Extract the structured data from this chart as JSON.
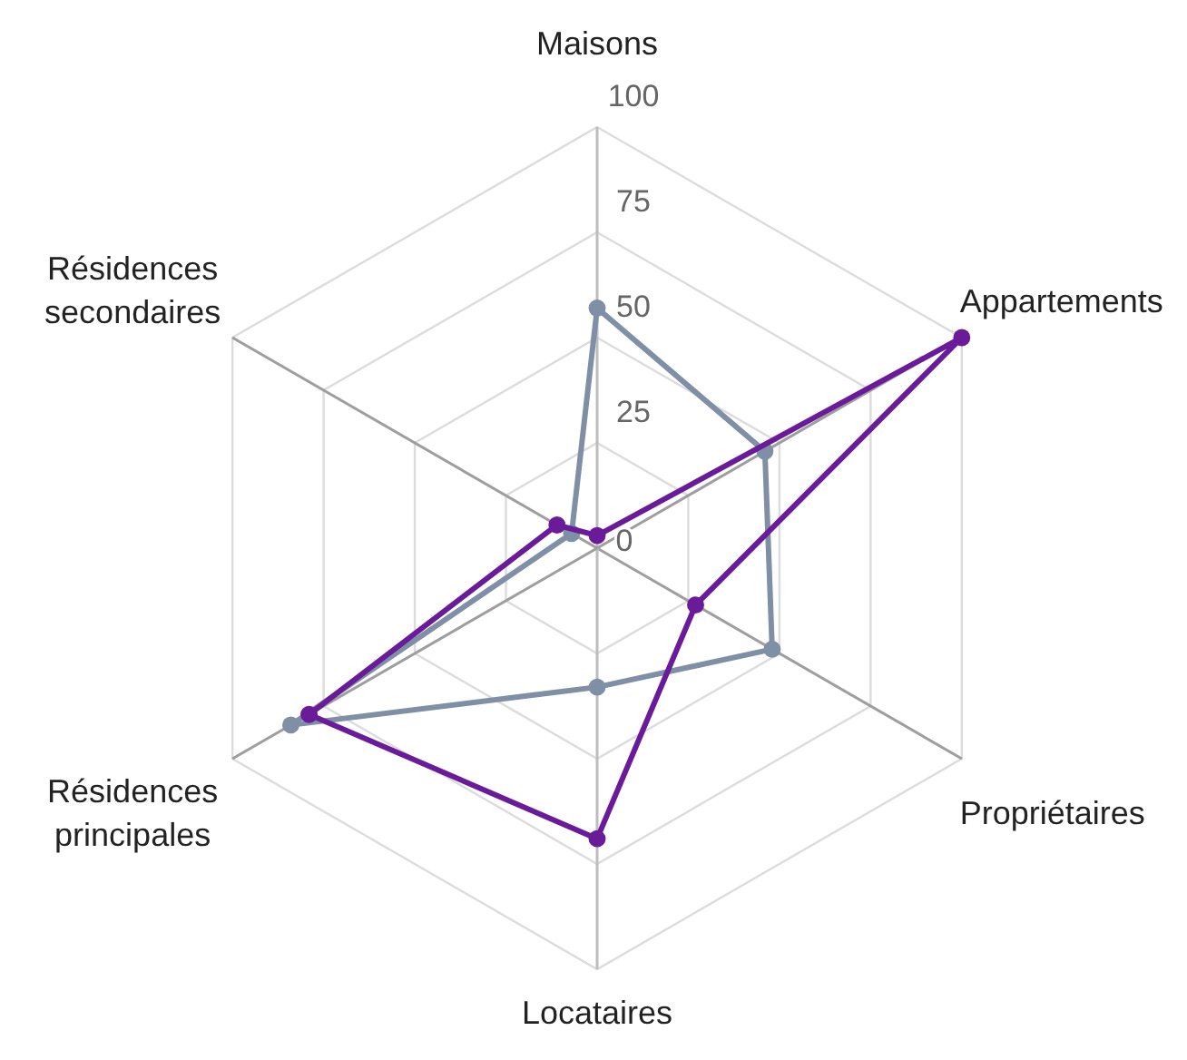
{
  "chart_data": {
    "type": "radar",
    "categories": [
      "Maisons",
      "Appartements",
      "Propriétaires",
      "Locataires",
      "Résidences principales",
      "Résidences secondaires"
    ],
    "series": [
      {
        "color": "#7f8fa6",
        "values": [
          57,
          46,
          48,
          33,
          84,
          7
        ]
      },
      {
        "color": "#6a1b9a",
        "values": [
          3,
          100,
          27,
          69,
          79,
          11
        ]
      }
    ],
    "ylim": [
      0,
      100
    ],
    "yticks": [
      0,
      25,
      50,
      75,
      100
    ],
    "grid": true,
    "marker": "circle"
  }
}
